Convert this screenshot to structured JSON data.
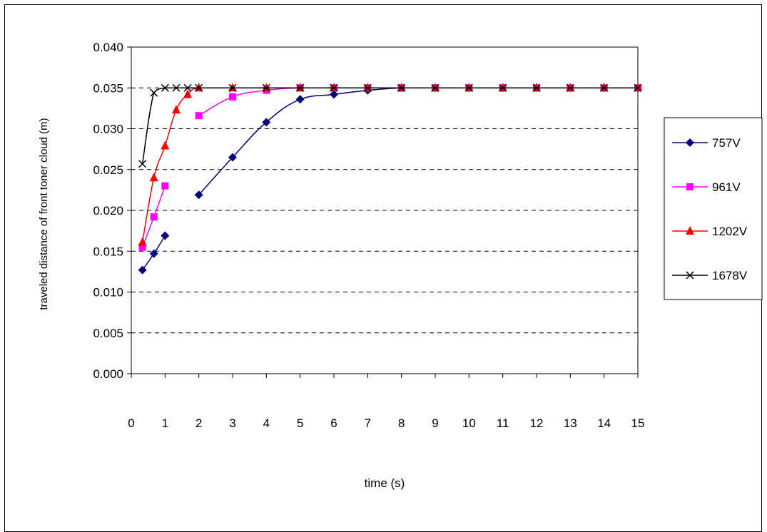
{
  "chart_data": {
    "type": "line",
    "xlabel": "time (s)",
    "ylabel": "traveled distance of front toner cloud (m)",
    "xlim": [
      0,
      15
    ],
    "ylim": [
      0,
      0.04
    ],
    "xticks": [
      "0",
      "1",
      "2",
      "3",
      "4",
      "5",
      "6",
      "7",
      "8",
      "9",
      "10",
      "11",
      "12",
      "13",
      "14",
      "15"
    ],
    "yticks": [
      "0.000",
      "0.005",
      "0.010",
      "0.015",
      "0.020",
      "0.025",
      "0.030",
      "0.035",
      "0.040"
    ],
    "grid": "horizontal dashed",
    "legend_position": "right",
    "series": [
      {
        "name": "757V",
        "color": "#000080",
        "marker": "diamond",
        "segments": [
          [
            [
              0.33,
              0.0127
            ],
            [
              0.67,
              0.0147
            ],
            [
              1.0,
              0.0169
            ]
          ],
          [
            [
              2,
              0.0219
            ],
            [
              3,
              0.0265
            ],
            [
              4,
              0.0308
            ],
            [
              5,
              0.0336
            ],
            [
              6,
              0.0342
            ],
            [
              7,
              0.0347
            ],
            [
              8,
              0.035
            ],
            [
              9,
              0.035
            ],
            [
              10,
              0.035
            ],
            [
              11,
              0.035
            ],
            [
              12,
              0.035
            ],
            [
              13,
              0.035
            ],
            [
              14,
              0.035
            ],
            [
              15,
              0.035
            ]
          ]
        ]
      },
      {
        "name": "961V",
        "color": "#FF00FF",
        "marker": "square",
        "segments": [
          [
            [
              0.33,
              0.0155
            ],
            [
              0.67,
              0.0192
            ],
            [
              1.0,
              0.023
            ]
          ],
          [
            [
              2,
              0.0316
            ],
            [
              3,
              0.0339
            ],
            [
              4,
              0.0347
            ],
            [
              5,
              0.035
            ],
            [
              6,
              0.035
            ],
            [
              7,
              0.035
            ],
            [
              8,
              0.035
            ],
            [
              9,
              0.035
            ],
            [
              10,
              0.035
            ],
            [
              11,
              0.035
            ],
            [
              12,
              0.035
            ],
            [
              13,
              0.035
            ],
            [
              14,
              0.035
            ],
            [
              15,
              0.035
            ]
          ]
        ]
      },
      {
        "name": "1202V",
        "color": "#FF0000",
        "marker": "triangle",
        "segments": [
          [
            [
              0.33,
              0.0161
            ],
            [
              0.67,
              0.024
            ],
            [
              1.0,
              0.0279
            ],
            [
              1.33,
              0.0323
            ],
            [
              1.67,
              0.0342
            ],
            [
              2,
              0.035
            ],
            [
              3,
              0.035
            ],
            [
              4,
              0.035
            ],
            [
              5,
              0.035
            ],
            [
              6,
              0.035
            ],
            [
              7,
              0.035
            ],
            [
              8,
              0.035
            ],
            [
              9,
              0.035
            ],
            [
              10,
              0.035
            ],
            [
              11,
              0.035
            ],
            [
              12,
              0.035
            ],
            [
              13,
              0.035
            ],
            [
              14,
              0.035
            ],
            [
              15,
              0.035
            ]
          ]
        ]
      },
      {
        "name": "1678V",
        "color": "#000000",
        "marker": "x",
        "segments": [
          [
            [
              0.33,
              0.0257
            ],
            [
              0.67,
              0.0344
            ],
            [
              1.0,
              0.035
            ],
            [
              1.33,
              0.035
            ],
            [
              1.67,
              0.035
            ],
            [
              2,
              0.035
            ],
            [
              3,
              0.035
            ],
            [
              4,
              0.035
            ],
            [
              5,
              0.035
            ],
            [
              6,
              0.035
            ],
            [
              7,
              0.035
            ],
            [
              8,
              0.035
            ],
            [
              9,
              0.035
            ],
            [
              10,
              0.035
            ],
            [
              11,
              0.035
            ],
            [
              12,
              0.035
            ],
            [
              13,
              0.035
            ],
            [
              14,
              0.035
            ],
            [
              15,
              0.035
            ]
          ]
        ]
      }
    ]
  }
}
